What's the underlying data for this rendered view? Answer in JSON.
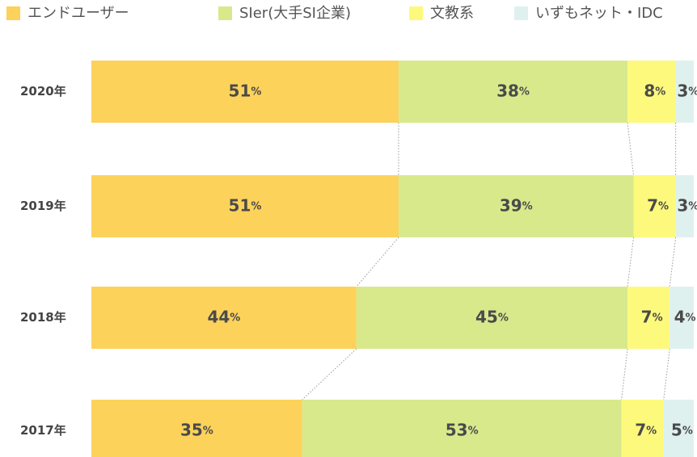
{
  "chart_data": {
    "type": "stacked-bar-horizontal",
    "categories": [
      "2020年",
      "2019年",
      "2018年",
      "2017年"
    ],
    "xlim": [
      0,
      100
    ],
    "series": [
      {
        "name": "エンドユーザー",
        "color": "#fcd25a",
        "values": [
          51,
          51,
          44,
          35
        ],
        "value_labels": [
          "51%",
          "51%",
          "44%",
          "35%"
        ]
      },
      {
        "name": "SIer(大手SI企業)",
        "color": "#d8e98c",
        "values": [
          38,
          39,
          45,
          53
        ],
        "value_labels": [
          "38%",
          "39%",
          "45%",
          "53%"
        ]
      },
      {
        "name": "文教系",
        "color": "#fdf97c",
        "values": [
          8,
          7,
          7,
          7
        ],
        "value_labels": [
          "8%",
          "7%",
          "7%",
          "7%"
        ]
      },
      {
        "name": "いずもネット・IDC",
        "color": "#dff1ef",
        "values": [
          3,
          3,
          4,
          5
        ],
        "value_labels": [
          "3%",
          "3%",
          "4%",
          "5%"
        ]
      }
    ],
    "legend": "top"
  }
}
